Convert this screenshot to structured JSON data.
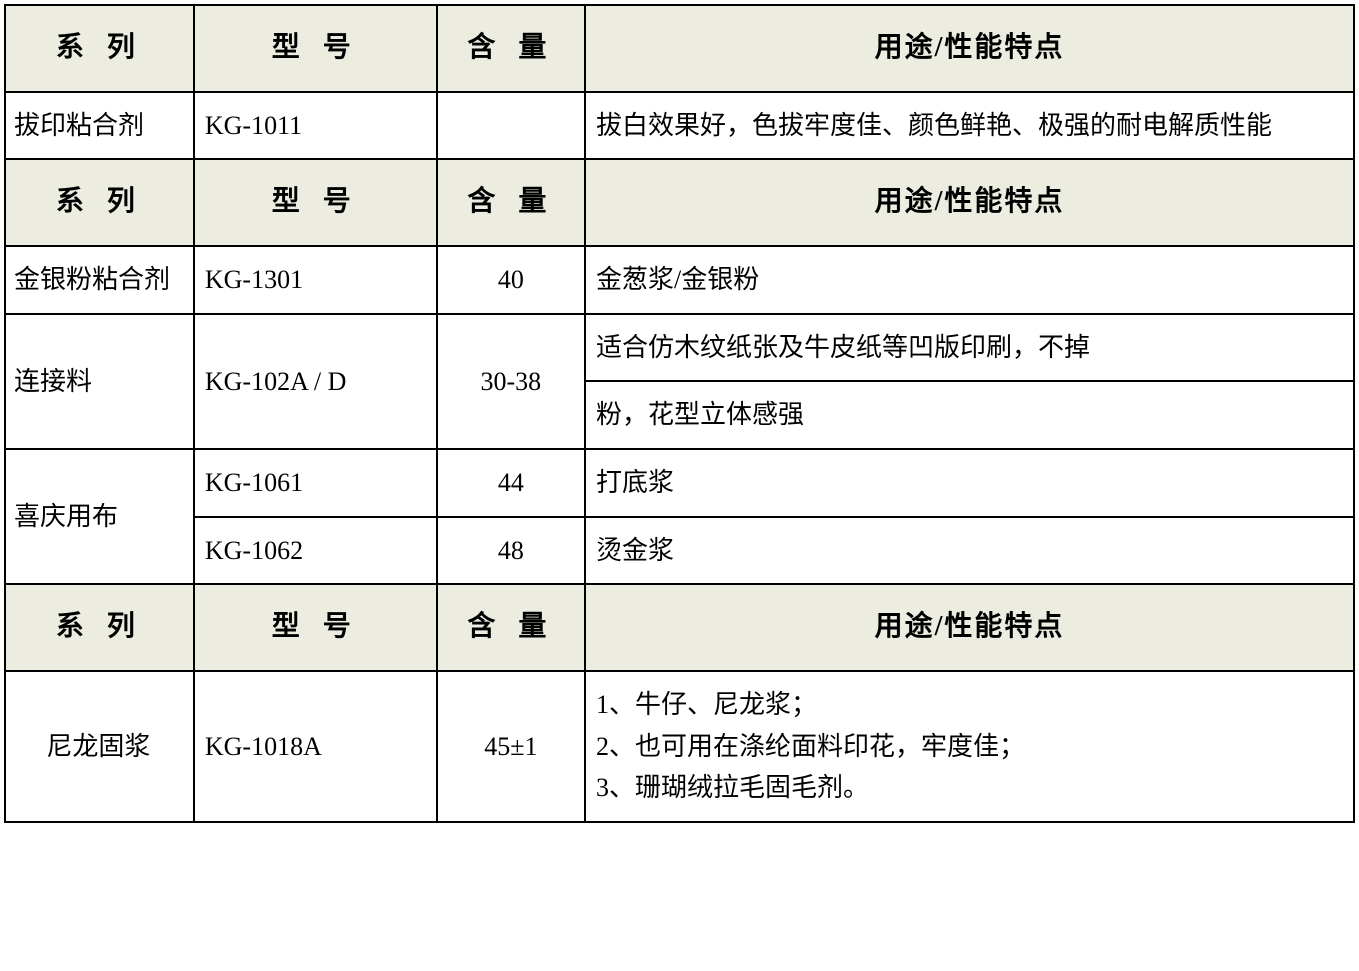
{
  "table": {
    "header_bg": "#ecece0",
    "border_color": "#000000",
    "columns": {
      "series": "系 列",
      "model": "型 号",
      "content": "含 量",
      "usage": "用途/性能特点"
    },
    "sections": [
      {
        "rows": [
          {
            "series": "拔印粘合剂",
            "model": "KG-1011",
            "content": "",
            "usage": "拔白效果好，色拔牢度佳、颜色鲜艳、极强的耐电解质性能"
          }
        ]
      },
      {
        "rows": [
          {
            "series": "金银粉粘合剂",
            "model": "KG-1301",
            "content": "40",
            "usage": "金葱浆/金银粉"
          },
          {
            "series": "连接料",
            "model": "KG-102A / D",
            "content": "30-38",
            "usage_line1": "适合仿木纹纸张及牛皮纸等凹版印刷，不掉",
            "usage_line2": "粉，花型立体感强"
          },
          {
            "series": "喜庆用布",
            "sub": [
              {
                "model": "KG-1061",
                "content": "44",
                "usage": "打底浆"
              },
              {
                "model": "KG-1062",
                "content": "48",
                "usage": "烫金浆"
              }
            ]
          }
        ]
      },
      {
        "rows": [
          {
            "series": "尼龙固浆",
            "series_centered": true,
            "model": "KG-1018A",
            "content": "45±1",
            "usage_lines": [
              "1、牛仔、尼龙浆；",
              "2、也可用在涤纶面料印花，牢度佳；",
              "3、珊瑚绒拉毛固毛剂。"
            ]
          }
        ]
      }
    ]
  }
}
